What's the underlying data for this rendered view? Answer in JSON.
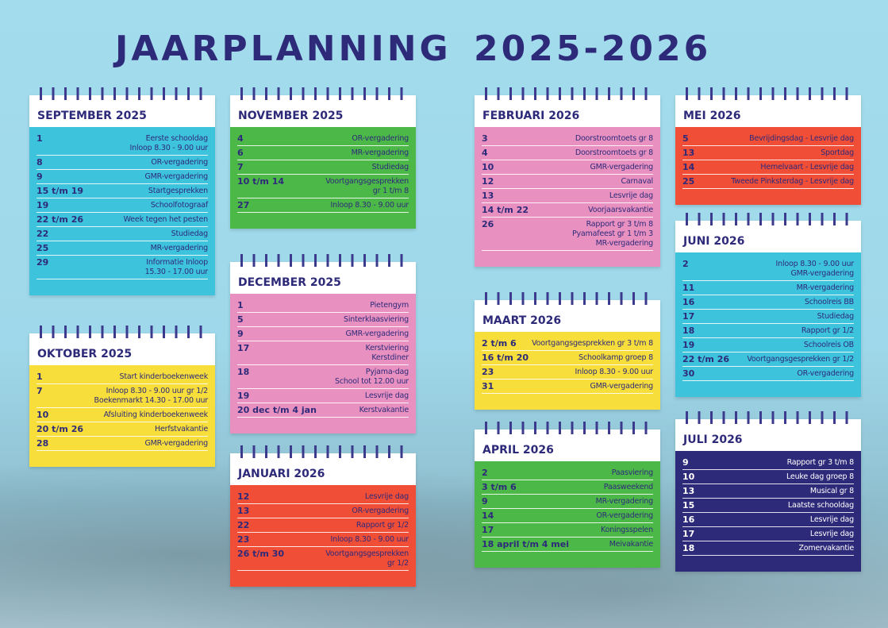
{
  "header": {
    "title": "JAARPLANNING",
    "years": "2025-2026"
  },
  "months": [
    {
      "name": "SEPTEMBER 2025",
      "entries": [
        {
          "date": "1",
          "text": "Eerste schooldag\nInloop 8.30 - 9.00 uur"
        },
        {
          "date": "8",
          "text": "OR-vergadering"
        },
        {
          "date": "9",
          "text": "GMR-vergadering"
        },
        {
          "date": "15 t/m 19",
          "text": "Startgesprekken"
        },
        {
          "date": "19",
          "text": "Schoolfotograaf"
        },
        {
          "date": "22 t/m 26",
          "text": "Week tegen het pesten"
        },
        {
          "date": "22",
          "text": "Studiedag"
        },
        {
          "date": "25",
          "text": "MR-vergadering"
        },
        {
          "date": "29",
          "text": "Informatie Inloop\n15.30 - 17.00 uur"
        }
      ]
    },
    {
      "name": "OKTOBER 2025",
      "entries": [
        {
          "date": "1",
          "text": "Start kinderboekenweek"
        },
        {
          "date": "7",
          "text": "Inloop 8.30 - 9.00 uur gr 1/2\nBoekenmarkt 14.30 - 17.00 uur"
        },
        {
          "date": "10",
          "text": "Afsluiting kinderboekenweek"
        },
        {
          "date": "20 t/m 26",
          "text": "Herfstvakantie"
        },
        {
          "date": "28",
          "text": "GMR-vergadering"
        }
      ]
    },
    {
      "name": "NOVEMBER 2025",
      "entries": [
        {
          "date": "4",
          "text": "OR-vergadering"
        },
        {
          "date": "6",
          "text": "MR-vergadering"
        },
        {
          "date": "7",
          "text": "Studiedag"
        },
        {
          "date": "10 t/m 14",
          "text": "Voortgangsgesprekken\ngr 1 t/m 8"
        },
        {
          "date": "27",
          "text": "Inloop 8.30 - 9.00 uur"
        }
      ]
    },
    {
      "name": "DECEMBER 2025",
      "entries": [
        {
          "date": "1",
          "text": "Pietengym"
        },
        {
          "date": "5",
          "text": "Sinterklaasviering"
        },
        {
          "date": "9",
          "text": "GMR-vergadering"
        },
        {
          "date": "17",
          "text": "Kerstviering\nKerstdiner"
        },
        {
          "date": "18",
          "text": "Pyjama-dag\nSchool tot 12.00 uur"
        },
        {
          "date": "19",
          "text": "Lesvrije dag"
        },
        {
          "date": "20 dec t/m 4 jan",
          "text": "Kerstvakantie"
        }
      ]
    },
    {
      "name": "JANUARI 2026",
      "entries": [
        {
          "date": "12",
          "text": "Lesvrije dag"
        },
        {
          "date": "13",
          "text": "OR-vergadering"
        },
        {
          "date": "22",
          "text": "Rapport gr 1/2"
        },
        {
          "date": "23",
          "text": "Inloop 8.30 - 9.00 uur"
        },
        {
          "date": "26 t/m 30",
          "text": "Voortgangsgesprekken\ngr 1/2"
        }
      ]
    },
    {
      "name": "FEBRUARI 2026",
      "entries": [
        {
          "date": "3",
          "text": "Doorstroomtoets gr 8"
        },
        {
          "date": "4",
          "text": "Doorstroomtoets gr 8"
        },
        {
          "date": "10",
          "text": "GMR-vergadering"
        },
        {
          "date": "12",
          "text": "Carnaval"
        },
        {
          "date": "13",
          "text": "Lesvrije dag"
        },
        {
          "date": "14 t/m 22",
          "text": "Voorjaarsvakantie"
        },
        {
          "date": "26",
          "text": "Rapport gr 3 t/m 8\nPyamafeest gr 1 t/m 3\nMR-vergadering"
        }
      ]
    },
    {
      "name": "MAART 2026",
      "entries": [
        {
          "date": "2 t/m 6",
          "text": "Voortgangsgesprekken gr 3 t/m 8"
        },
        {
          "date": "16 t/m 20",
          "text": "Schoolkamp groep 8"
        },
        {
          "date": "23",
          "text": "Inloop 8.30 - 9.00 uur"
        },
        {
          "date": "31",
          "text": "GMR-vergadering"
        }
      ]
    },
    {
      "name": "APRIL 2026",
      "entries": [
        {
          "date": "2",
          "text": "Paasviering"
        },
        {
          "date": "3 t/m 6",
          "text": "Paasweekend"
        },
        {
          "date": "9",
          "text": "MR-vergadering"
        },
        {
          "date": "14",
          "text": "OR-vergadering"
        },
        {
          "date": "17",
          "text": "Koningsspelen"
        },
        {
          "date": "18 april t/m 4 mei",
          "text": "Meivakantie"
        }
      ]
    },
    {
      "name": "MEI 2026",
      "entries": [
        {
          "date": "5",
          "text": "Bevrijdingsdag - Lesvrije dag"
        },
        {
          "date": "13",
          "text": "Sportdag"
        },
        {
          "date": "14",
          "text": "Hemelvaart - Lesvrije dag"
        },
        {
          "date": "25",
          "text": "Tweede Pinksterdag - Lesvrije dag"
        }
      ]
    },
    {
      "name": "JUNI 2026",
      "entries": [
        {
          "date": "2",
          "text": "Inloop 8.30 - 9.00 uur\nGMR-vergadering"
        },
        {
          "date": "11",
          "text": "MR-vergadering"
        },
        {
          "date": "16",
          "text": "Schoolreis BB"
        },
        {
          "date": "17",
          "text": "Studiedag"
        },
        {
          "date": "18",
          "text": "Rapport gr 1/2"
        },
        {
          "date": "19",
          "text": "Schoolreis OB"
        },
        {
          "date": "22 t/m 26",
          "text": "Voortgangsgesprekken gr 1/2"
        },
        {
          "date": "30",
          "text": "OR-vergadering"
        }
      ]
    },
    {
      "name": "JULI 2026",
      "entries": [
        {
          "date": "9",
          "text": "Rapport gr 3 t/m 8"
        },
        {
          "date": "10",
          "text": "Leuke dag groep 8"
        },
        {
          "date": "13",
          "text": "Musical gr 8"
        },
        {
          "date": "15",
          "text": "Laatste schooldag"
        },
        {
          "date": "16",
          "text": "Lesvrije dag"
        },
        {
          "date": "17",
          "text": "Lesvrije dag"
        },
        {
          "date": "18",
          "text": "Zomervakantie"
        }
      ]
    }
  ]
}
